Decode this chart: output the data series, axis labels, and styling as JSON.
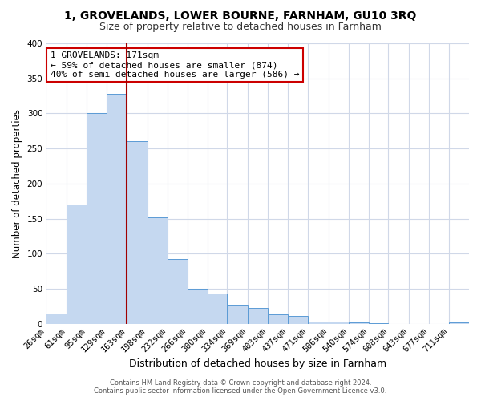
{
  "title": "1, GROVELANDS, LOWER BOURNE, FARNHAM, GU10 3RQ",
  "subtitle": "Size of property relative to detached houses in Farnham",
  "xlabel": "Distribution of detached houses by size in Farnham",
  "ylabel": "Number of detached properties",
  "bar_values": [
    15,
    170,
    300,
    328,
    260,
    152,
    92,
    50,
    43,
    27,
    23,
    13,
    11,
    3,
    3,
    2,
    1,
    0,
    0,
    0,
    2
  ],
  "bar_labels": [
    "26sqm",
    "61sqm",
    "95sqm",
    "129sqm",
    "163sqm",
    "198sqm",
    "232sqm",
    "266sqm",
    "300sqm",
    "334sqm",
    "369sqm",
    "403sqm",
    "437sqm",
    "471sqm",
    "506sqm",
    "540sqm",
    "574sqm",
    "608sqm",
    "643sqm",
    "677sqm",
    "711sqm"
  ],
  "bar_edges": [
    26,
    61,
    95,
    129,
    163,
    198,
    232,
    266,
    300,
    334,
    369,
    403,
    437,
    471,
    506,
    540,
    574,
    608,
    643,
    677,
    711
  ],
  "bar_color": "#c5d8f0",
  "bar_edgecolor": "#5b9bd5",
  "vline_x": 163,
  "vline_color": "#a00000",
  "ylim": [
    0,
    400
  ],
  "yticks": [
    0,
    50,
    100,
    150,
    200,
    250,
    300,
    350,
    400
  ],
  "annotation_title": "1 GROVELANDS: 171sqm",
  "annotation_line1": "← 59% of detached houses are smaller (874)",
  "annotation_line2": "40% of semi-detached houses are larger (586) →",
  "annotation_box_facecolor": "white",
  "annotation_box_edgecolor": "#cc0000",
  "footer_line1": "Contains HM Land Registry data © Crown copyright and database right 2024.",
  "footer_line2": "Contains public sector information licensed under the Open Government Licence v3.0.",
  "plot_bg_color": "#ffffff",
  "fig_bg_color": "#ffffff",
  "grid_color": "#d0d8e8",
  "title_fontsize": 10,
  "subtitle_fontsize": 9,
  "tick_fontsize": 7.5,
  "ylabel_fontsize": 8.5,
  "xlabel_fontsize": 9,
  "ann_fontsize": 8
}
